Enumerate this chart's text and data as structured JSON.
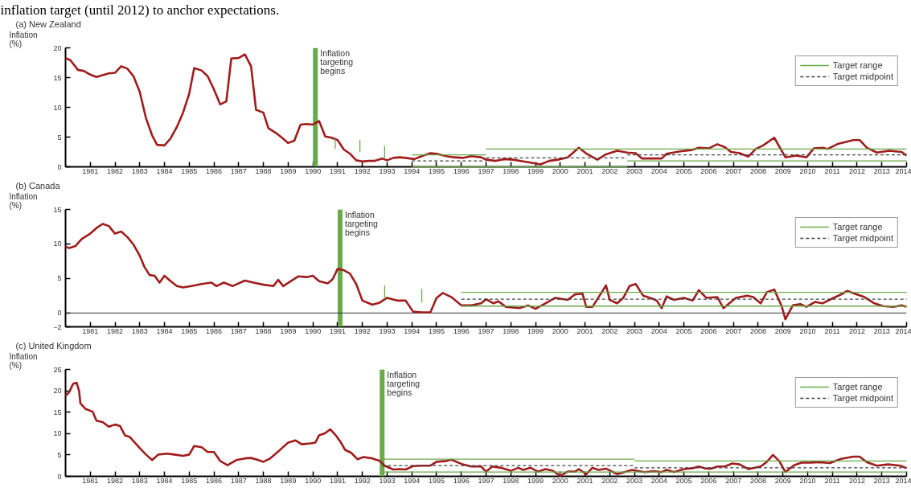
{
  "chart_data": [
    {
      "type": "line",
      "title": "(a) New Zealand",
      "ylabel": "Inflation (%)",
      "annotations": [
        "inflation target (until 2012) to anchor expectations."
      ],
      "xlim": [
        1980,
        2014
      ],
      "xticks": [
        1981,
        1982,
        1983,
        1984,
        1985,
        1986,
        1987,
        1988,
        1989,
        1990,
        1991,
        1992,
        1993,
        1994,
        1995,
        1996,
        1997,
        1998,
        1999,
        2000,
        2001,
        2002,
        2003,
        2004,
        2005,
        2006,
        2007,
        2008,
        2009,
        2010,
        2011,
        2012,
        2013,
        2014
      ],
      "ylim": [
        0,
        20
      ],
      "yticks": [
        0,
        5,
        10,
        15,
        20
      ],
      "legend": "top right",
      "ref_lines": [
        {
          "axis": "x",
          "value": 1990.1,
          "label": "Inflation targeting begins",
          "color": "#6aaa4a"
        }
      ],
      "series": [
        {
          "color": "#a01c1c",
          "x": [
            1980.0,
            1980.2,
            1980.5,
            1980.75,
            1981.0,
            1981.25,
            1981.5,
            1981.75,
            1982.0,
            1982.25,
            1982.5,
            1982.75,
            1983.0,
            1983.25,
            1983.5,
            1983.7,
            1984.0,
            1984.25,
            1984.5,
            1984.75,
            1985.0,
            1985.2,
            1985.5,
            1985.75,
            1986.0,
            1986.25,
            1986.5,
            1986.7,
            1987.0,
            1987.25,
            1987.5,
            1987.7,
            1988.0,
            1988.2,
            1988.5,
            1988.75,
            1989.0,
            1989.25,
            1989.5,
            1989.75,
            1990.0,
            1990.25,
            1990.5,
            1990.75,
            1991.0,
            1991.25,
            1991.5,
            1991.75,
            1992.0,
            1992.25,
            1992.5,
            1992.8,
            1993.0,
            1993.25,
            1993.5,
            1993.75,
            1994.1,
            1994.4,
            1994.75,
            1995.0,
            1995.4,
            1995.7,
            1996.06,
            1996.4,
            1996.8,
            1997.0,
            1997.4,
            1997.75,
            1998.1,
            1998.5,
            1998.8,
            1999.2,
            1999.55,
            1999.9,
            2000.3,
            2000.75,
            2001.1,
            2001.5,
            2001.85,
            2002.3,
            2002.7,
            2003.05,
            2003.3,
            2003.65,
            2004.1,
            2004.3,
            2004.85,
            2005.3,
            2005.6,
            2006.0,
            2006.35,
            2006.65,
            2006.9,
            2007.25,
            2007.6,
            2007.9,
            2008.2,
            2008.65,
            2009.1,
            2009.55,
            2009.95,
            2010.25,
            2010.6,
            2010.8,
            2011.25,
            2011.85,
            2012.1,
            2012.4,
            2012.8,
            2013.3,
            2013.8,
            2014.0
          ],
          "values": [
            18.3,
            17.9,
            16.3,
            16.1,
            15.5,
            15.1,
            15.4,
            15.7,
            15.8,
            16.9,
            16.5,
            15.2,
            12.6,
            8.2,
            5.3,
            3.7,
            3.6,
            4.8,
            6.7,
            9.1,
            12.3,
            16.6,
            16.2,
            15.2,
            13.0,
            10.5,
            11.0,
            18.2,
            18.3,
            18.9,
            16.9,
            9.6,
            9.1,
            6.5,
            5.7,
            4.9,
            4.0,
            4.4,
            7.1,
            7.2,
            7.1,
            7.7,
            5.1,
            4.9,
            4.5,
            2.9,
            2.2,
            1.1,
            0.9,
            1.0,
            1.0,
            1.4,
            1.1,
            1.5,
            1.6,
            1.5,
            1.3,
            1.8,
            2.3,
            2.2,
            1.8,
            1.6,
            1.5,
            1.8,
            1.6,
            1.2,
            1.0,
            1.3,
            1.2,
            0.9,
            0.7,
            0.4,
            1.0,
            1.2,
            1.6,
            3.2,
            2.1,
            1.2,
            2.1,
            2.7,
            2.4,
            2.3,
            1.4,
            1.4,
            1.4,
            2.2,
            2.6,
            2.8,
            3.2,
            3.1,
            3.8,
            3.3,
            2.5,
            2.3,
            1.7,
            3.0,
            3.6,
            4.9,
            1.6,
            1.9,
            1.6,
            3.1,
            3.2,
            3.0,
            3.9,
            4.5,
            4.5,
            3.2,
            2.4,
            2.7,
            2.5,
            1.9
          ]
        },
        {
          "name": "Target range",
          "color": "#6aaa4a",
          "x": [
            1994,
            1997
          ],
          "values": [
            2,
            2
          ]
        },
        {
          "color": "#6aaa4a",
          "x": [
            1997,
            2014
          ],
          "values": [
            3,
            3
          ]
        },
        {
          "color": "#6aaa4a",
          "x": [
            1994,
            2002.7
          ],
          "values": [
            0,
            0
          ]
        },
        {
          "color": "#6aaa4a",
          "x": [
            2002.7,
            2014
          ],
          "values": [
            1,
            1
          ]
        },
        {
          "name": "Target midpoint",
          "color": "#444444",
          "line_style": "dashed",
          "x": [
            1994,
            1997
          ],
          "values": [
            1,
            1
          ]
        },
        {
          "color": "#444444",
          "line_style": "dashed",
          "x": [
            1997,
            2002.7
          ],
          "values": [
            1.5,
            1.5
          ]
        },
        {
          "color": "#444444",
          "line_style": "dashed",
          "x": [
            2002.7,
            2014
          ],
          "values": [
            2,
            2
          ]
        },
        {
          "color": "#6aaa4a",
          "x": [
            1990.9,
            1990.9
          ],
          "values": [
            3,
            5
          ]
        },
        {
          "color": "#6aaa4a",
          "x": [
            1991.9,
            1991.9
          ],
          "values": [
            2.5,
            4.5
          ]
        },
        {
          "color": "#6aaa4a",
          "x": [
            1992.9,
            1992.9
          ],
          "values": [
            1.5,
            3.5
          ]
        }
      ]
    },
    {
      "type": "line",
      "title": "(b) Canada",
      "ylabel": "Inflation (%)",
      "xlim": [
        1980,
        2014
      ],
      "xticks": [
        1981,
        1982,
        1983,
        1984,
        1985,
        1986,
        1987,
        1988,
        1989,
        1990,
        1991,
        1992,
        1993,
        1994,
        1995,
        1996,
        1997,
        1998,
        1999,
        2000,
        2001,
        2002,
        2003,
        2004,
        2005,
        2006,
        2007,
        2008,
        2009,
        2010,
        2011,
        2012,
        2013,
        2014
      ],
      "ylim": [
        -2,
        15
      ],
      "yticks": [
        -2,
        0,
        5,
        10,
        15
      ],
      "legend": "top right",
      "ref_lines": [
        {
          "axis": "x",
          "value": 1991.1,
          "label": "Inflation targeting begins",
          "color": "#6aaa4a"
        },
        {
          "axis": "y",
          "value": 0,
          "color": "#333333"
        }
      ],
      "series": [
        {
          "color": "#a01c1c",
          "x": [
            1980.0,
            1980.15,
            1980.4,
            1980.65,
            1981.0,
            1981.25,
            1981.5,
            1981.75,
            1982.0,
            1982.25,
            1982.5,
            1982.75,
            1983.0,
            1983.2,
            1983.4,
            1983.6,
            1983.8,
            1984.0,
            1984.25,
            1984.5,
            1984.75,
            1985.1,
            1985.5,
            1985.9,
            1986.1,
            1986.4,
            1986.75,
            1987.25,
            1987.6,
            1988.0,
            1988.4,
            1988.6,
            1988.8,
            1989.1,
            1989.4,
            1989.75,
            1990.0,
            1990.25,
            1990.6,
            1990.8,
            1991.0,
            1991.25,
            1991.5,
            1991.75,
            1992.0,
            1992.4,
            1992.7,
            1993.0,
            1993.4,
            1993.75,
            1994.05,
            1994.4,
            1994.75,
            1995.0,
            1995.25,
            1995.6,
            1996.0,
            1996.4,
            1996.8,
            1997.0,
            1997.3,
            1997.5,
            1997.8,
            1998.35,
            1998.7,
            1999.0,
            1999.4,
            1999.8,
            2000.3,
            2000.6,
            2000.9,
            2001.05,
            2001.3,
            2001.5,
            2001.85,
            2002.0,
            2002.3,
            2002.55,
            2002.8,
            2003.05,
            2003.35,
            2003.7,
            2003.9,
            2004.1,
            2004.3,
            2004.6,
            2005.0,
            2005.35,
            2005.6,
            2005.9,
            2006.35,
            2006.6,
            2007.1,
            2007.55,
            2007.8,
            2008.1,
            2008.35,
            2008.65,
            2008.95,
            2009.1,
            2009.4,
            2009.7,
            2009.95,
            2010.3,
            2010.6,
            2011.0,
            2011.3,
            2011.6,
            2011.9,
            2012.3,
            2012.7,
            2013.05,
            2013.5,
            2013.8,
            2014.0
          ],
          "values": [
            9.6,
            9.4,
            9.7,
            10.7,
            11.5,
            12.3,
            12.9,
            12.6,
            11.5,
            11.8,
            11.0,
            9.9,
            8.3,
            6.6,
            5.5,
            5.4,
            4.4,
            5.4,
            4.6,
            3.9,
            3.7,
            3.9,
            4.2,
            4.4,
            3.9,
            4.4,
            3.9,
            4.7,
            4.4,
            4.1,
            3.9,
            4.8,
            3.9,
            4.6,
            5.3,
            5.2,
            5.4,
            4.6,
            4.3,
            4.9,
            6.4,
            6.2,
            5.7,
            4.2,
            1.8,
            1.2,
            1.5,
            2.2,
            1.8,
            1.8,
            0.2,
            0.1,
            0.1,
            2.2,
            2.9,
            2.3,
            1.1,
            1.1,
            1.4,
            2.0,
            1.4,
            1.7,
            0.9,
            0.7,
            1.1,
            0.6,
            1.4,
            2.2,
            1.9,
            2.7,
            2.8,
            0.9,
            0.9,
            2.0,
            4.0,
            1.9,
            1.4,
            2.2,
            3.9,
            4.2,
            2.5,
            2.1,
            1.8,
            0.7,
            2.4,
            1.9,
            2.2,
            1.8,
            3.3,
            2.2,
            2.3,
            0.7,
            2.2,
            2.5,
            2.3,
            1.4,
            3.0,
            3.4,
            1.0,
            -0.9,
            1.1,
            1.3,
            0.9,
            1.6,
            1.4,
            2.1,
            2.6,
            3.2,
            2.8,
            2.3,
            1.4,
            1.0,
            0.9,
            1.1,
            0.9
          ]
        },
        {
          "name": "Target range",
          "color": "#6aaa4a",
          "x": [
            1996,
            2014
          ],
          "values": [
            3,
            3
          ]
        },
        {
          "color": "#6aaa4a",
          "x": [
            1996,
            2014
          ],
          "values": [
            1,
            1
          ]
        },
        {
          "name": "Target midpoint",
          "color": "#444444",
          "line_style": "dashed",
          "x": [
            1996,
            2014
          ],
          "values": [
            2,
            2
          ]
        },
        {
          "color": "#6aaa4a",
          "x": [
            1992.9,
            1992.9
          ],
          "values": [
            2,
            4
          ]
        },
        {
          "color": "#6aaa4a",
          "x": [
            1994.4,
            1994.4
          ],
          "values": [
            1.5,
            3.5
          ]
        }
      ]
    },
    {
      "type": "line",
      "title": "(c) United Kingdom",
      "ylabel": "Inflation (%)",
      "xlim": [
        1980,
        2014
      ],
      "xticks": [
        1981,
        1982,
        1983,
        1984,
        1985,
        1986,
        1987,
        1988,
        1989,
        1990,
        1991,
        1992,
        1993,
        1994,
        1995,
        1996,
        1997,
        1998,
        1999,
        2000,
        2001,
        2002,
        2003,
        2004,
        2005,
        2006,
        2007,
        2008,
        2009,
        2010,
        2011,
        2012,
        2013,
        2014
      ],
      "ylim": [
        0,
        25
      ],
      "yticks": [
        0,
        5,
        10,
        15,
        20,
        25
      ],
      "legend": "top right",
      "ref_lines": [
        {
          "axis": "x",
          "value": 1992.8,
          "label": "Inflation targeting begins",
          "color": "#6aaa4a"
        }
      ],
      "series": [
        {
          "color": "#a01c1c",
          "x": [
            1980.0,
            1980.15,
            1980.3,
            1980.45,
            1980.55,
            1980.6,
            1980.8,
            1981.1,
            1981.25,
            1981.5,
            1981.75,
            1982.0,
            1982.2,
            1982.4,
            1982.6,
            1983.0,
            1983.25,
            1983.5,
            1983.75,
            1984.1,
            1984.4,
            1984.75,
            1985.0,
            1985.2,
            1985.5,
            1985.75,
            1986.0,
            1986.25,
            1986.55,
            1986.9,
            1987.25,
            1987.5,
            1987.75,
            1988.0,
            1988.25,
            1988.5,
            1988.75,
            1989.0,
            1989.3,
            1989.55,
            1989.9,
            1990.1,
            1990.25,
            1990.5,
            1990.7,
            1990.95,
            1991.1,
            1991.3,
            1991.55,
            1991.8,
            1992.05,
            1992.4,
            1992.7,
            1992.9,
            1993.25,
            1993.5,
            1993.75,
            1994.05,
            1994.4,
            1994.75,
            1995.0,
            1995.4,
            1995.6,
            1996.05,
            1996.4,
            1996.8,
            1997.0,
            1997.25,
            1997.6,
            1998.0,
            1998.3,
            1998.5,
            1998.8,
            1999.1,
            1999.4,
            1999.7,
            2000.0,
            2000.3,
            2000.6,
            2000.75,
            2001.05,
            2001.3,
            2001.55,
            2001.85,
            2002.3,
            2002.6,
            2002.9,
            2003.4,
            2003.8,
            2004.1,
            2004.3,
            2004.6,
            2005.0,
            2005.35,
            2005.6,
            2005.9,
            2006.1,
            2006.35,
            2006.65,
            2006.95,
            2007.25,
            2007.6,
            2008.1,
            2008.35,
            2008.6,
            2008.85,
            2009.1,
            2009.45,
            2009.75,
            2010.1,
            2010.5,
            2010.9,
            2011.35,
            2011.85,
            2012.1,
            2012.4,
            2012.8,
            2013.25,
            2013.75,
            2014.0
          ],
          "values": [
            18.8,
            19.7,
            21.6,
            21.9,
            19.9,
            17.1,
            15.8,
            15.1,
            13.0,
            12.7,
            11.6,
            12.1,
            11.8,
            9.6,
            9.2,
            6.6,
            5.1,
            3.8,
            5.1,
            5.3,
            5.1,
            4.8,
            5.1,
            7.1,
            6.8,
            5.7,
            5.7,
            3.6,
            2.6,
            3.8,
            4.2,
            4.3,
            3.9,
            3.4,
            4.1,
            5.3,
            6.6,
            7.9,
            8.4,
            7.5,
            7.7,
            7.9,
            9.6,
            10.1,
            11.0,
            9.4,
            8.2,
            6.2,
            5.5,
            4.0,
            4.5,
            4.2,
            3.6,
            2.5,
            1.6,
            1.7,
            1.6,
            2.4,
            2.5,
            2.5,
            3.4,
            3.6,
            3.9,
            2.8,
            2.3,
            2.3,
            1.1,
            2.3,
            2.0,
            1.3,
            2.0,
            1.5,
            2.0,
            1.1,
            1.7,
            1.3,
            0.1,
            1.1,
            1.1,
            1.7,
            0.5,
            2.0,
            1.5,
            1.8,
            0.5,
            1.0,
            1.5,
            1.0,
            1.2,
            1.0,
            1.5,
            1.0,
            1.7,
            1.9,
            2.3,
            1.8,
            1.8,
            2.3,
            2.3,
            3.0,
            2.8,
            1.7,
            2.3,
            3.4,
            5.0,
            3.6,
            1.0,
            2.6,
            3.2,
            3.2,
            3.3,
            3.1,
            4.1,
            4.6,
            4.6,
            3.3,
            2.5,
            2.8,
            2.5,
            1.9
          ]
        },
        {
          "name": "Target range",
          "color": "#6aaa4a",
          "x": [
            1992.8,
            2003
          ],
          "values": [
            4,
            4
          ]
        },
        {
          "color": "#6aaa4a",
          "x": [
            2003,
            2014
          ],
          "values": [
            3.6,
            3.6
          ]
        },
        {
          "color": "#6aaa4a",
          "x": [
            1992.8,
            2014
          ],
          "values": [
            1,
            1
          ]
        },
        {
          "name": "Target midpoint",
          "color": "#444444",
          "line_style": "dashed",
          "x": [
            1992.8,
            2003
          ],
          "values": [
            2.5,
            2.5
          ]
        },
        {
          "color": "#444444",
          "line_style": "dashed",
          "x": [
            2003,
            2014
          ],
          "values": [
            2,
            2
          ]
        }
      ]
    }
  ]
}
